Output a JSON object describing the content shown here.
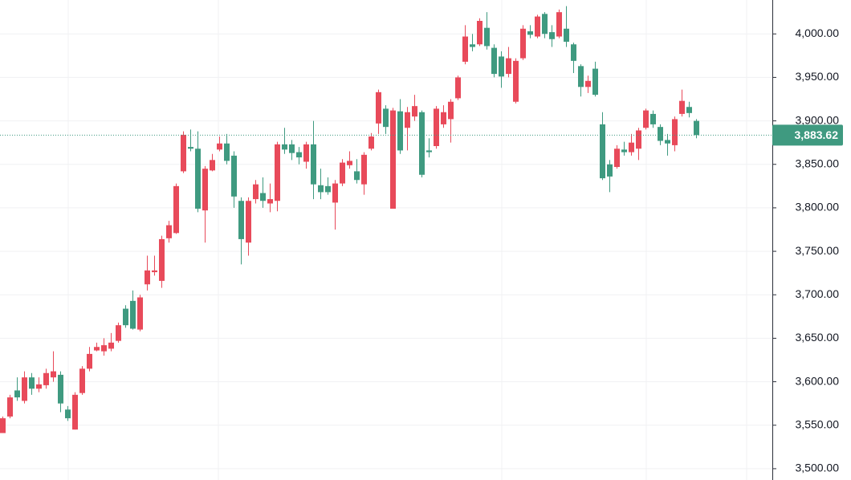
{
  "chart_data": {
    "type": "candlestick",
    "up_color": "#e84a5a",
    "down_color": "#3f9a80",
    "ylim": [
      3487,
      4039
    ],
    "yticks": [
      {
        "value": 3500,
        "label": "3,500.00"
      },
      {
        "value": 3550,
        "label": "3,550.00"
      },
      {
        "value": 3600,
        "label": "3,600.00"
      },
      {
        "value": 3650,
        "label": "3,650.00"
      },
      {
        "value": 3700,
        "label": "3,700.00"
      },
      {
        "value": 3750,
        "label": "3,750.00"
      },
      {
        "value": 3800,
        "label": "3,800.00"
      },
      {
        "value": 3850,
        "label": "3,850.00"
      },
      {
        "value": 3900,
        "label": "3,900.00"
      },
      {
        "value": 3950,
        "label": "3,950.00"
      },
      {
        "value": 4000,
        "label": "4,000.00"
      }
    ],
    "grid": true,
    "last_price": {
      "value": 3883.62,
      "label": "3,883.62"
    },
    "open": [
      3541,
      3560,
      3590,
      3578,
      3605,
      3592,
      3596,
      3605,
      3608,
      3568,
      3545,
      3587,
      3615,
      3636,
      3635,
      3638,
      3647,
      3684,
      3693,
      3660,
      3712,
      3726,
      3716,
      3765,
      3771,
      3842,
      3870,
      3868,
      3797,
      3843,
      3867,
      3874,
      3860,
      3808,
      3760,
      3810,
      3817,
      3805,
      3808,
      3873,
      3873,
      3864,
      3853,
      3873,
      3826,
      3825,
      3806,
      3828,
      3849,
      3842,
      3827,
      3868,
      3897,
      3914,
      3799,
      3911,
      3892,
      3905,
      3910,
      3866,
      3871,
      3896,
      3902,
      3926,
      3968,
      3988,
      3988,
      4007,
      3984,
      3974,
      3954,
      3922,
      3972,
      4003,
      3997,
      4023,
      4002,
      3997,
      4006,
      3988,
      3963,
      3939,
      3960,
      3896,
      3850,
      3847,
      3867,
      3864,
      3868,
      3892,
      3908,
      3893,
      3878,
      3872,
      3908,
      3916,
      3900
    ],
    "high": [
      3560,
      3585,
      3605,
      3612,
      3610,
      3605,
      3615,
      3635,
      3612,
      3572,
      3588,
      3618,
      3640,
      3645,
      3650,
      3656,
      3668,
      3688,
      3705,
      3700,
      3745,
      3745,
      3768,
      3785,
      3828,
      3888,
      3890,
      3888,
      3848,
      3862,
      3882,
      3885,
      3865,
      3812,
      3812,
      3832,
      3835,
      3828,
      3876,
      3892,
      3878,
      3870,
      3876,
      3900,
      3845,
      3835,
      3832,
      3856,
      3865,
      3856,
      3864,
      3886,
      3936,
      3918,
      3915,
      3925,
      3916,
      3930,
      3912,
      3880,
      3917,
      3918,
      3925,
      3952,
      4010,
      4000,
      4018,
      4025,
      3988,
      3980,
      3985,
      3972,
      4010,
      4010,
      4022,
      4025,
      4010,
      4028,
      4032,
      3990,
      3965,
      3952,
      3968,
      3910,
      3855,
      3872,
      3876,
      3885,
      3892,
      3914,
      3912,
      3896,
      3885,
      3905,
      3936,
      3922,
      3902
    ],
    "low": [
      3541,
      3558,
      3578,
      3575,
      3585,
      3588,
      3592,
      3600,
      3565,
      3555,
      3545,
      3585,
      3612,
      3635,
      3630,
      3635,
      3645,
      3662,
      3660,
      3658,
      3705,
      3722,
      3708,
      3760,
      3770,
      3840,
      3865,
      3795,
      3760,
      3842,
      3865,
      3850,
      3800,
      3735,
      3745,
      3805,
      3800,
      3795,
      3796,
      3862,
      3855,
      3850,
      3845,
      3810,
      3810,
      3815,
      3775,
      3825,
      3845,
      3828,
      3815,
      3866,
      3885,
      3885,
      3799,
      3862,
      3866,
      3900,
      3835,
      3858,
      3868,
      3892,
      3875,
      3924,
      3965,
      3980,
      3986,
      3982,
      3950,
      3938,
      3950,
      3920,
      3970,
      3995,
      3995,
      3995,
      3985,
      3995,
      3985,
      3955,
      3928,
      3932,
      3928,
      3832,
      3818,
      3845,
      3860,
      3860,
      3855,
      3890,
      3892,
      3872,
      3860,
      3865,
      3905,
      3904,
      3880
    ],
    "close": [
      3558,
      3582,
      3582,
      3605,
      3592,
      3597,
      3610,
      3612,
      3575,
      3558,
      3585,
      3615,
      3632,
      3640,
      3642,
      3645,
      3665,
      3665,
      3661,
      3697,
      3728,
      3728,
      3764,
      3780,
      3825,
      3884,
      3868,
      3799,
      3845,
      3855,
      3874,
      3854,
      3813,
      3764,
      3808,
      3827,
      3808,
      3810,
      3873,
      3867,
      3863,
      3858,
      3873,
      3827,
      3818,
      3818,
      3828,
      3852,
      3854,
      3832,
      3861,
      3882,
      3933,
      3893,
      3912,
      3866,
      3910,
      3917,
      3838,
      3864,
      3914,
      3910,
      3922,
      3950,
      3997,
      3985,
      4015,
      3986,
      3954,
      3951,
      3972,
      3969,
      4006,
      3999,
      4020,
      4000,
      3994,
      4025,
      3991,
      3969,
      3939,
      3946,
      3930,
      3834,
      3836,
      3868,
      3864,
      3875,
      3889,
      3912,
      3896,
      3877,
      3874,
      3902,
      3923,
      3909,
      3883.62
    ]
  }
}
